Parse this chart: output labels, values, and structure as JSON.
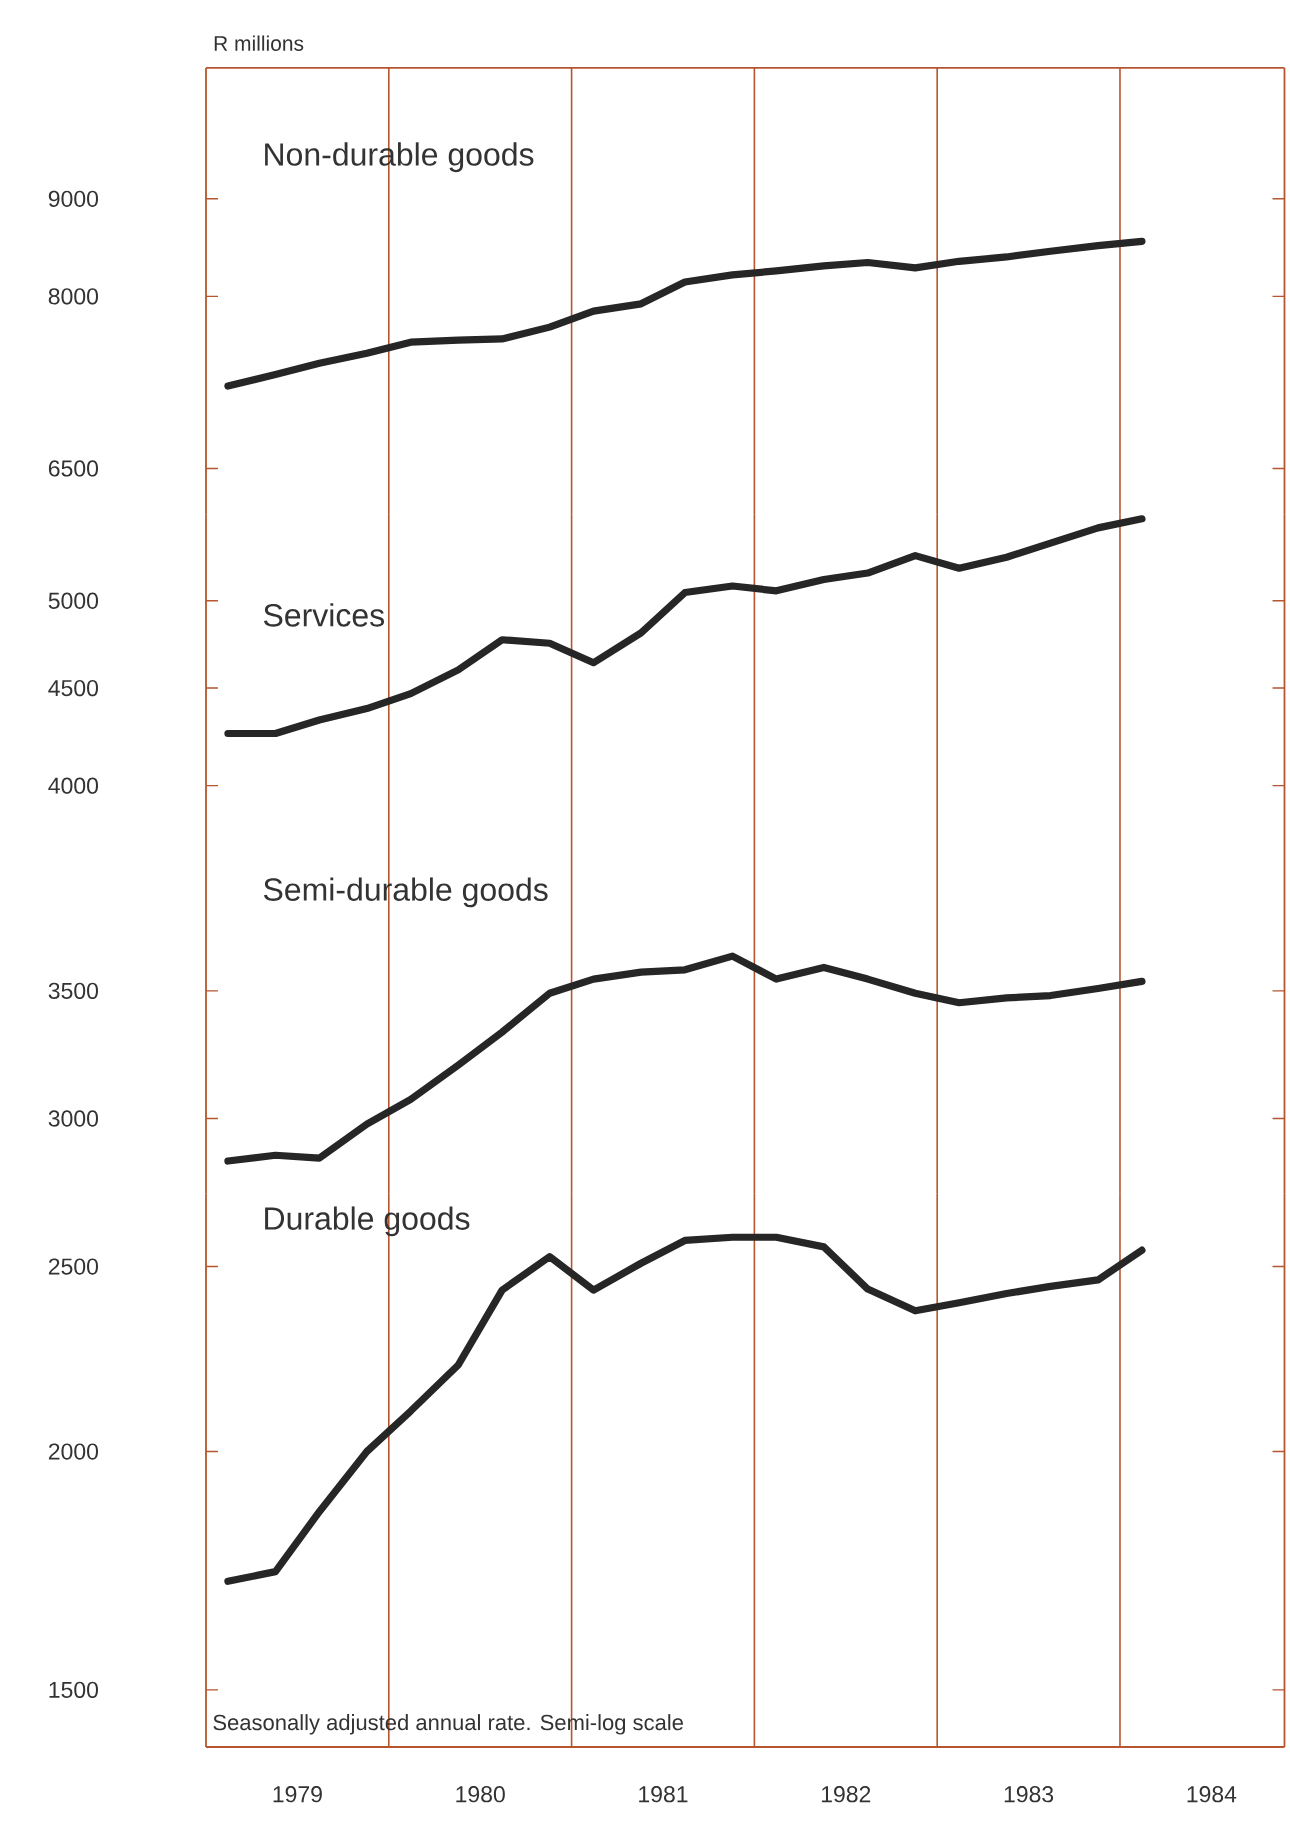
{
  "chart_data": [
    {
      "type": "line",
      "ylabel": "R millions",
      "log": true,
      "marker": "none",
      "tick_labels": "y",
      "xlim": [
        1979,
        1984.9
      ],
      "ylim": [
        6150,
        10540
      ],
      "yticks": [
        6500,
        8000,
        9000
      ],
      "x": [
        1979.125,
        1979.375,
        1979.625,
        1979.875,
        1980.125,
        1980.375,
        1980.625,
        1980.875,
        1981.125,
        1981.375,
        1981.625,
        1981.875,
        1982.125,
        1982.375,
        1982.625,
        1982.875,
        1983.125,
        1983.375,
        1983.625,
        1983.875,
        1984.125
      ],
      "ref_lines": [
        {
          "axis": "x",
          "value": 1980,
          "color": "#b5562f"
        },
        {
          "axis": "x",
          "value": 1981,
          "color": "#b5562f"
        },
        {
          "axis": "x",
          "value": 1982,
          "color": "#b5562f"
        },
        {
          "axis": "x",
          "value": 1983,
          "color": "#b5562f"
        },
        {
          "axis": "x",
          "value": 1984,
          "color": "#b5562f"
        }
      ],
      "series": [
        {
          "name": "Non-durable goods",
          "color": "#262626",
          "values": [
            7180,
            7280,
            7380,
            7470,
            7570,
            7590,
            7600,
            7710,
            7860,
            7930,
            8140,
            8210,
            8250,
            8300,
            8334,
            8280,
            8346,
            8390,
            8448,
            8505,
            8550
          ]
        }
      ]
    },
    {
      "type": "line",
      "log": true,
      "marker": "none",
      "tick_labels": "y",
      "xlim": [
        1979,
        1984.9
      ],
      "ylim": [
        3480,
        5550
      ],
      "yticks": [
        4000,
        4500,
        5000
      ],
      "x": [
        1979.125,
        1979.375,
        1979.625,
        1979.875,
        1980.125,
        1980.375,
        1980.625,
        1980.875,
        1981.125,
        1981.375,
        1981.625,
        1981.875,
        1982.125,
        1982.375,
        1982.625,
        1982.875,
        1983.125,
        1983.375,
        1983.625,
        1983.875,
        1984.125
      ],
      "ref_lines": [
        {
          "axis": "x",
          "value": 1980,
          "color": "#b5562f"
        },
        {
          "axis": "x",
          "value": 1981,
          "color": "#b5562f"
        },
        {
          "axis": "x",
          "value": 1982,
          "color": "#b5562f"
        },
        {
          "axis": "x",
          "value": 1983,
          "color": "#b5562f"
        },
        {
          "axis": "x",
          "value": 1984,
          "color": "#b5562f"
        }
      ],
      "series": [
        {
          "name": "Services",
          "color": "#262626",
          "values": [
            4260,
            4260,
            4330,
            4390,
            4470,
            4600,
            4770,
            4750,
            4640,
            4810,
            5050,
            5090,
            5060,
            5130,
            5170,
            5280,
            5200,
            5270,
            5360,
            5460,
            5520
          ]
        }
      ]
    },
    {
      "type": "line",
      "log": true,
      "marker": "none",
      "tick_labels": "y",
      "xlim": [
        1979,
        1984.9
      ],
      "ylim": [
        2740,
        3900
      ],
      "yticks": [
        3000,
        3500
      ],
      "x": [
        1979.125,
        1979.375,
        1979.625,
        1979.875,
        1980.125,
        1980.375,
        1980.625,
        1980.875,
        1981.125,
        1981.375,
        1981.625,
        1981.875,
        1982.125,
        1982.375,
        1982.625,
        1982.875,
        1983.125,
        1983.375,
        1983.625,
        1983.875,
        1984.125
      ],
      "ref_lines": [
        {
          "axis": "x",
          "value": 1980,
          "color": "#b5562f"
        },
        {
          "axis": "x",
          "value": 1981,
          "color": "#b5562f"
        },
        {
          "axis": "x",
          "value": 1982,
          "color": "#b5562f"
        },
        {
          "axis": "x",
          "value": 1983,
          "color": "#b5562f"
        },
        {
          "axis": "x",
          "value": 1984,
          "color": "#b5562f"
        }
      ],
      "series": [
        {
          "name": "Semi-durable goods",
          "color": "#262626",
          "values": [
            2850,
            2870,
            2860,
            2980,
            3070,
            3200,
            3330,
            3490,
            3550,
            3580,
            3590,
            3650,
            3550,
            3600,
            3550,
            3490,
            3450,
            3470,
            3480,
            3510,
            3540
          ]
        }
      ]
    },
    {
      "type": "line",
      "log": true,
      "marker": "none",
      "xlim": [
        1979,
        1984.9
      ],
      "ylim": [
        1400,
        2730
      ],
      "yticks": [
        1500,
        2000,
        2500
      ],
      "xticks": [
        {
          "value": 1979.5,
          "label": "1979"
        },
        {
          "value": 1980.5,
          "label": "1980"
        },
        {
          "value": 1981.5,
          "label": "1981"
        },
        {
          "value": 1982.5,
          "label": "1982"
        },
        {
          "value": 1983.5,
          "label": "1983"
        },
        {
          "value": 1984.5,
          "label": "1984"
        }
      ],
      "annotations": [
        "Seasonally adjusted annual rate. Semi-log scale"
      ],
      "x": [
        1979.125,
        1979.375,
        1979.625,
        1979.875,
        1980.125,
        1980.375,
        1980.625,
        1980.875,
        1981.125,
        1981.375,
        1981.625,
        1981.875,
        1982.125,
        1982.375,
        1982.625,
        1982.875,
        1983.125,
        1983.375,
        1983.625,
        1983.875,
        1984.125
      ],
      "ref_lines": [
        {
          "axis": "x",
          "value": 1980,
          "color": "#b5562f"
        },
        {
          "axis": "x",
          "value": 1981,
          "color": "#b5562f"
        },
        {
          "axis": "x",
          "value": 1982,
          "color": "#b5562f"
        },
        {
          "axis": "x",
          "value": 1983,
          "color": "#b5562f"
        },
        {
          "axis": "x",
          "value": 1984,
          "color": "#b5562f"
        }
      ],
      "series": [
        {
          "name": "Durable goods",
          "color": "#262626",
          "values": [
            1710,
            1730,
            1860,
            2000,
            2100,
            2220,
            2430,
            2530,
            2430,
            2510,
            2580,
            2590,
            2590,
            2560,
            2433,
            2370,
            2393,
            2420,
            2441,
            2460,
            2550
          ]
        }
      ]
    }
  ]
}
